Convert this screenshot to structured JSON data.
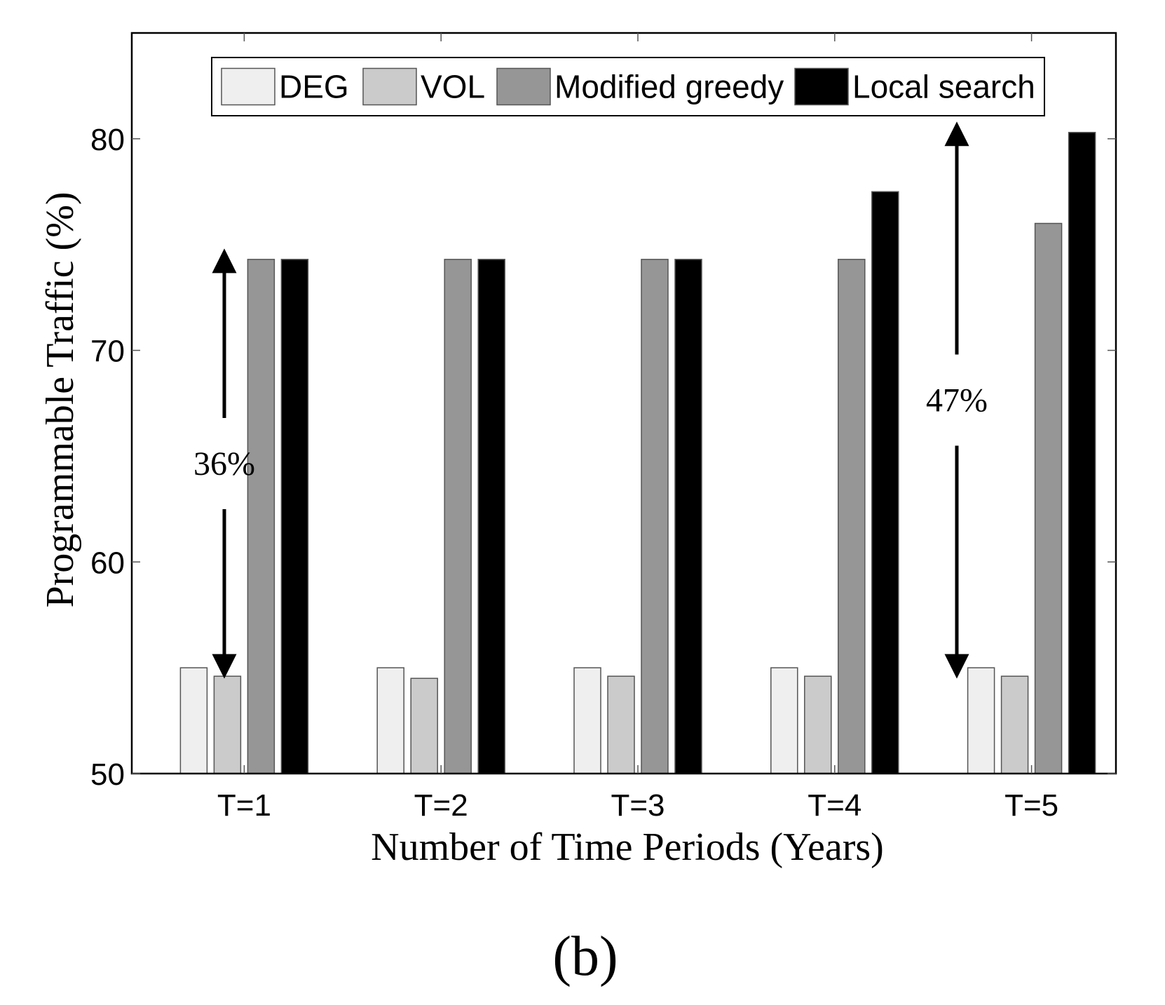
{
  "chart_data": {
    "type": "bar",
    "categories": [
      "T=1",
      "T=2",
      "T=3",
      "T=4",
      "T=5"
    ],
    "series": [
      {
        "name": "DEG",
        "color": "#efefef",
        "values": [
          55.0,
          55.0,
          55.0,
          55.0,
          55.0
        ]
      },
      {
        "name": "VOL",
        "color": "#cbcbcb",
        "values": [
          54.6,
          54.5,
          54.6,
          54.6,
          54.6
        ]
      },
      {
        "name": "Modified greedy",
        "color": "#969696",
        "values": [
          74.3,
          74.3,
          74.3,
          74.3,
          76.0
        ]
      },
      {
        "name": "Local search",
        "color": "#000000",
        "values": [
          74.3,
          74.3,
          74.3,
          77.5,
          80.3
        ]
      }
    ],
    "xlabel": "Number of Time Periods (Years)",
    "ylabel": "Programmable Traffic (%)",
    "ylim": [
      50,
      85
    ],
    "yticks": [
      50,
      60,
      70,
      80
    ],
    "grid": false,
    "legend": "top-center",
    "annotations": [
      {
        "text": "36%",
        "category": "T=1",
        "from": 55.0,
        "to": 74.3
      },
      {
        "text": "47%",
        "category": "T=5",
        "from": 55.0,
        "to": 80.3
      }
    ],
    "caption": "(b)"
  }
}
